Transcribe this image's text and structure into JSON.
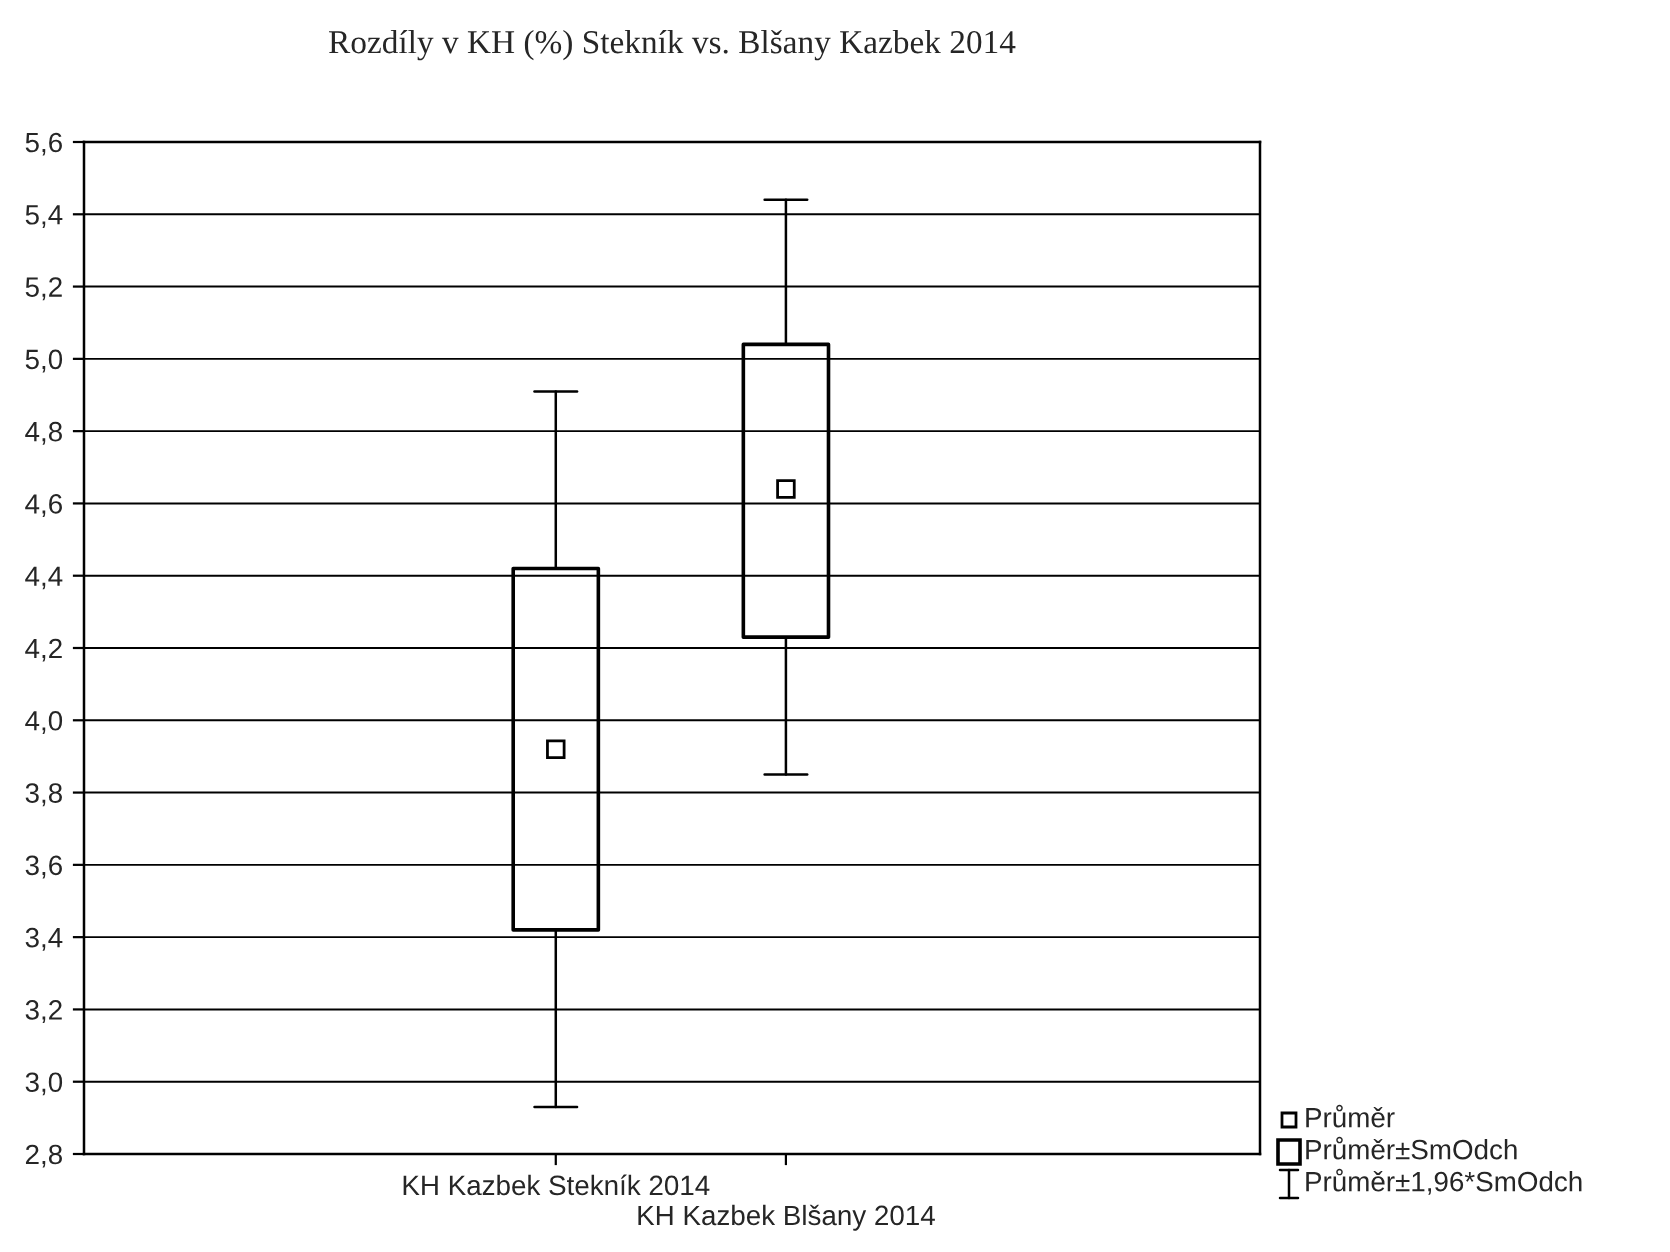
{
  "chart_data": {
    "type": "box",
    "title": "Rozdíly v KH (%) Stekník vs. Blšany Kazbek 2014",
    "categories": [
      "KH Kazbek Stekník 2014",
      "KH Kazbek Blšany 2014"
    ],
    "boxes": [
      {
        "low": 2.93,
        "q1": 3.42,
        "q3": 4.42,
        "high": 4.91,
        "mean": 3.92
      },
      {
        "low": 3.85,
        "q1": 4.23,
        "q3": 5.04,
        "high": 5.44,
        "mean": 4.64
      }
    ],
    "ylim": [
      2.8,
      5.6
    ],
    "yticks": [
      {
        "value": 2.8,
        "label": "2,8"
      },
      {
        "value": 3.0,
        "label": "3,0"
      },
      {
        "value": 3.2,
        "label": "3,2"
      },
      {
        "value": 3.4,
        "label": "3,4"
      },
      {
        "value": 3.6,
        "label": "3,6"
      },
      {
        "value": 3.8,
        "label": "3,8"
      },
      {
        "value": 4.0,
        "label": "4,0"
      },
      {
        "value": 4.2,
        "label": "4,2"
      },
      {
        "value": 4.4,
        "label": "4,4"
      },
      {
        "value": 4.6,
        "label": "4,6"
      },
      {
        "value": 4.8,
        "label": "4,8"
      },
      {
        "value": 5.0,
        "label": "5,0"
      },
      {
        "value": 5.2,
        "label": "5,2"
      },
      {
        "value": 5.4,
        "label": "5,4"
      },
      {
        "value": 5.6,
        "label": "5,6"
      }
    ],
    "grid": "y",
    "marker": "square",
    "annotations": [
      "Průměr",
      "Průměr±SmOdch",
      "Průměr±1,96*SmOdch"
    ]
  }
}
